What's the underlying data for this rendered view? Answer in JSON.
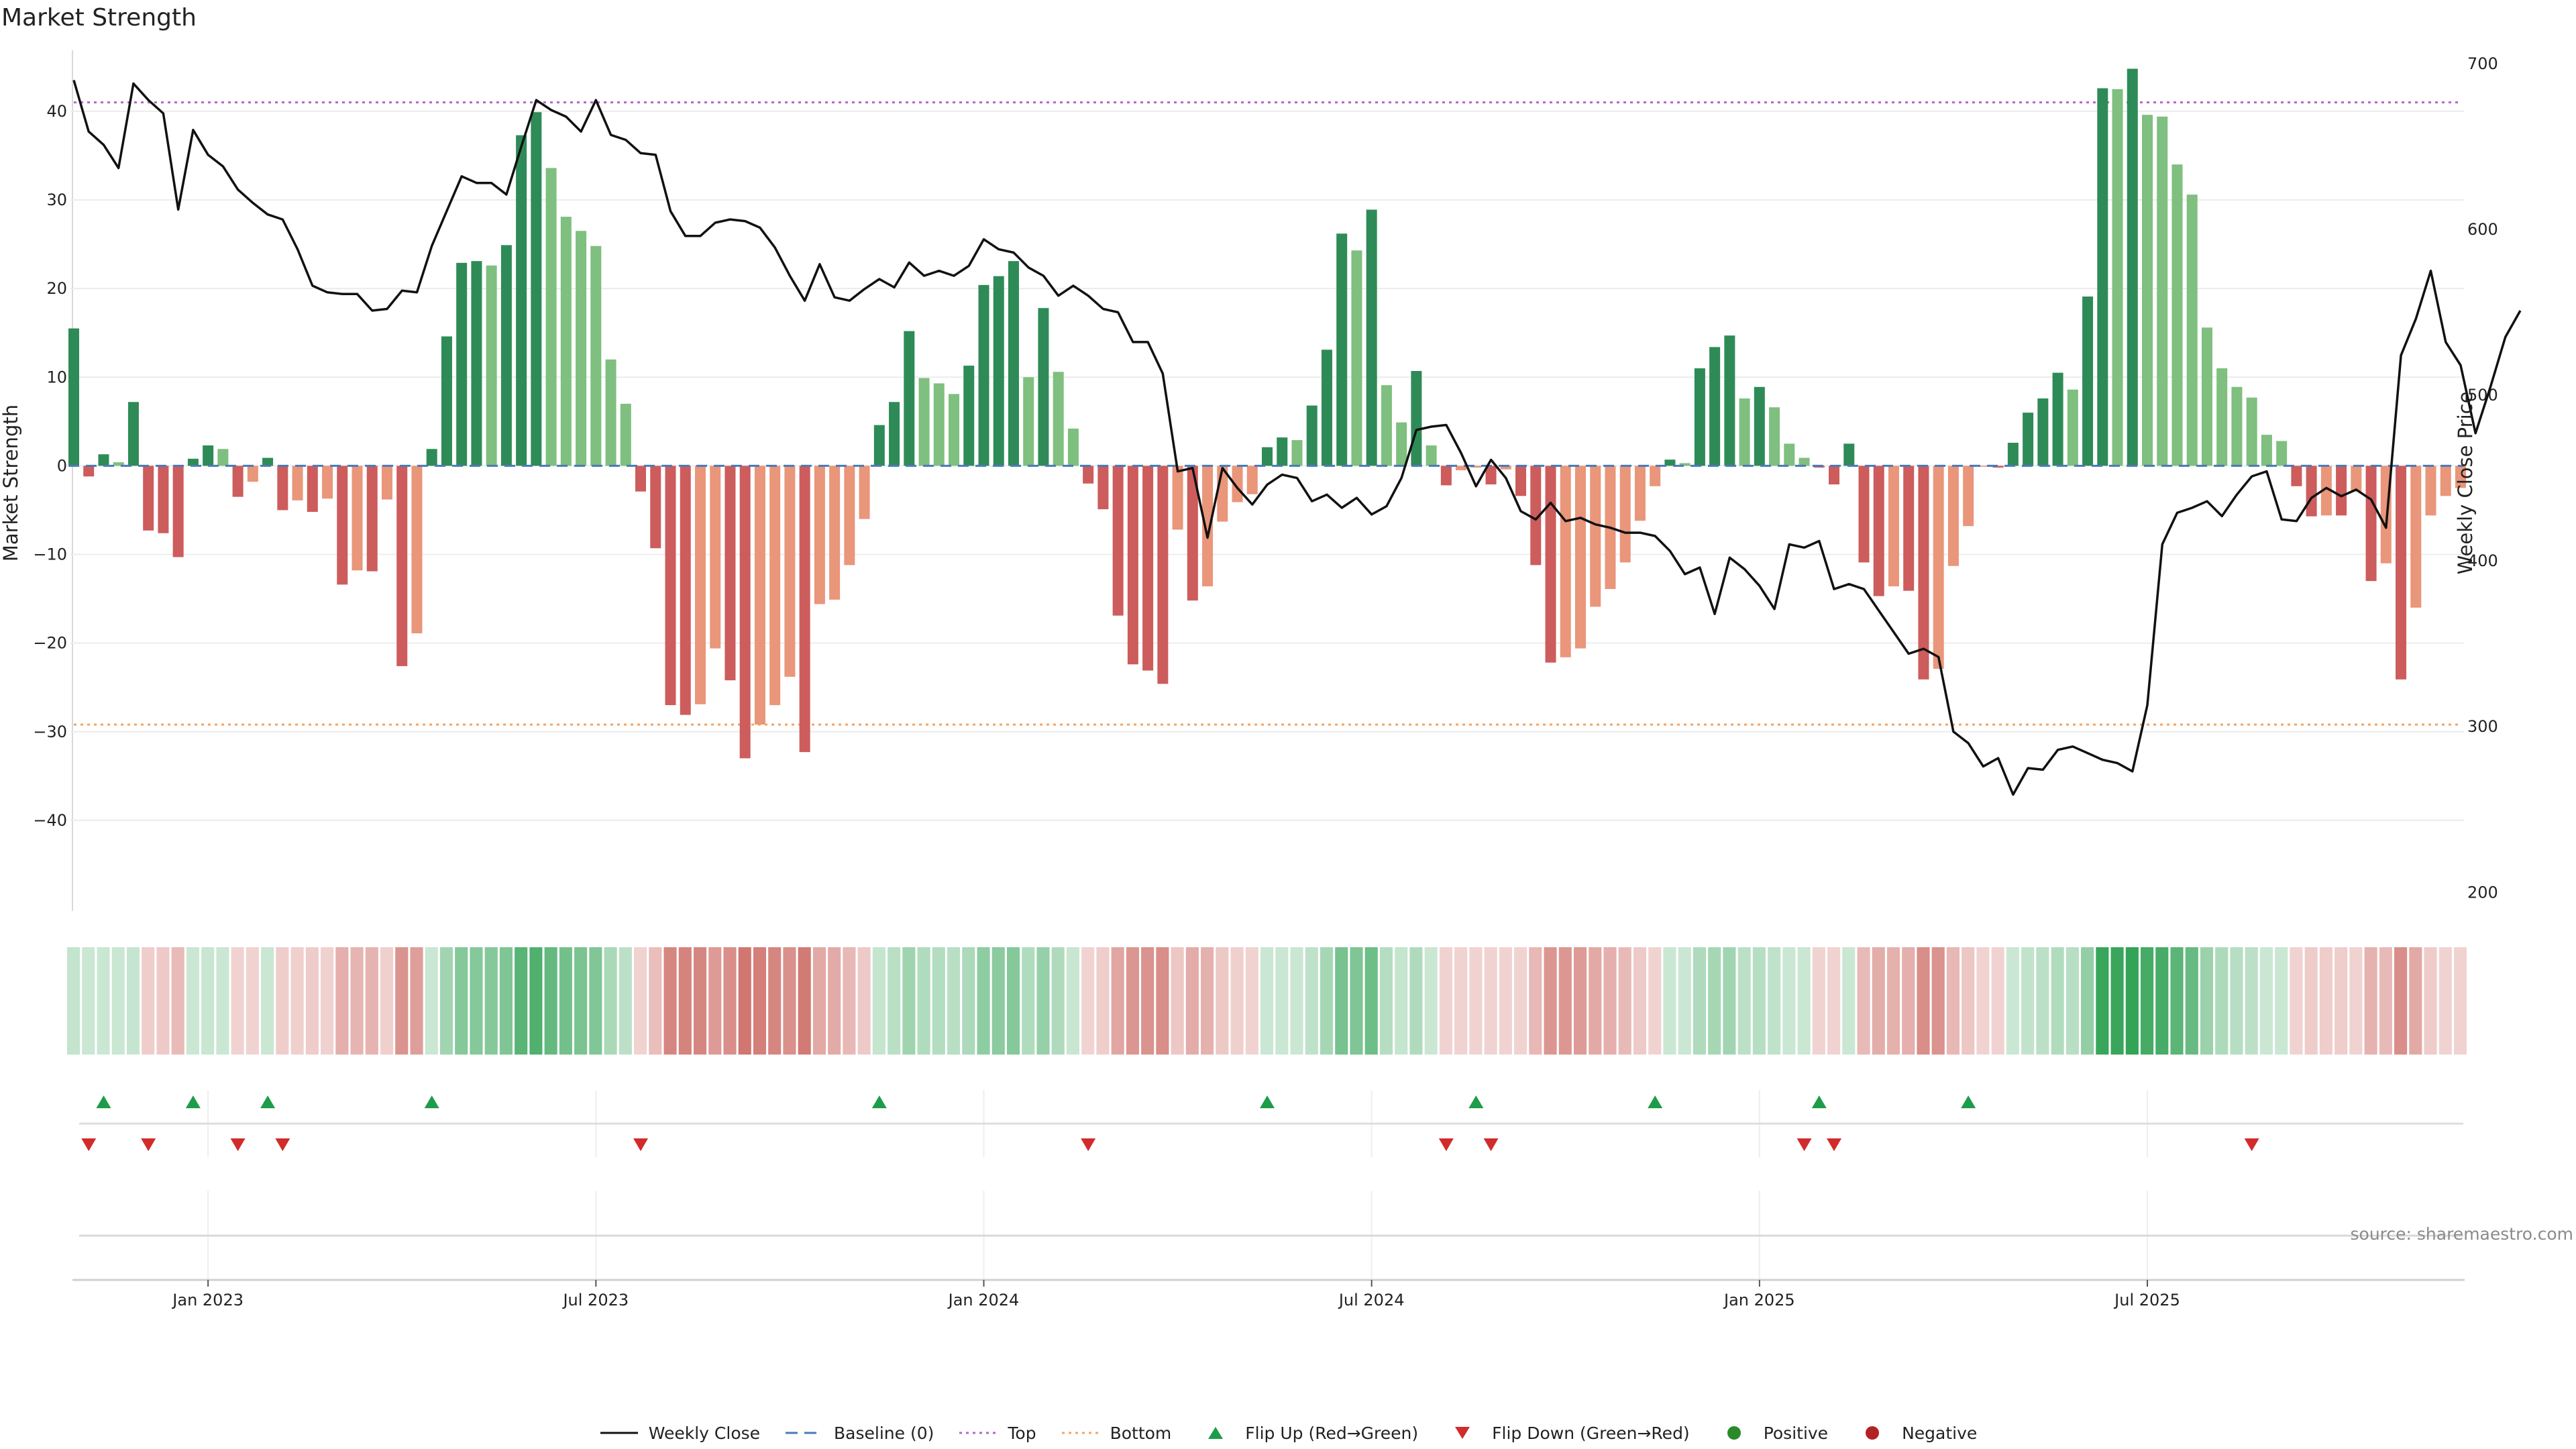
{
  "chart_data": {
    "type": "bar",
    "title": "Market Strength",
    "ylabel_left": "Market Strength",
    "ylabel_right": "Weekly Close Price",
    "source": "source: sharemaestro.com",
    "y_left_range": [
      -50,
      46.5
    ],
    "y_left_ticks": [
      40,
      30,
      20,
      10,
      0,
      -10,
      -20,
      -30,
      -40
    ],
    "y_left_tick_labels": [
      "40",
      "30",
      "20",
      "10",
      "0",
      "−10",
      "−20",
      "−30",
      "−40"
    ],
    "y_right_range": [
      190,
      706
    ],
    "y_right_ticks": [
      700,
      600,
      500,
      400,
      300,
      200
    ],
    "top_threshold": 41,
    "bottom_threshold": -29.2,
    "x_ticks": [
      {
        "label": "Jan 2023",
        "week": 9
      },
      {
        "label": "Jul 2023",
        "week": 35
      },
      {
        "label": "Jan 2024",
        "week": 61
      },
      {
        "label": "Jul 2024",
        "week": 87
      },
      {
        "label": "Jan 2025",
        "week": 113
      },
      {
        "label": "Jul 2025",
        "week": 139
      }
    ],
    "strength": [
      15.5,
      -1.2,
      1.3,
      0.4,
      7.2,
      -7.3,
      -7.6,
      -10.3,
      0.8,
      2.3,
      1.9,
      -3.5,
      -1.8,
      0.9,
      -5.0,
      -3.9,
      -5.2,
      -3.7,
      -13.4,
      -11.8,
      -11.9,
      -3.8,
      -22.6,
      -18.9,
      1.9,
      14.6,
      22.9,
      23.1,
      22.6,
      24.9,
      37.3,
      39.9,
      33.6,
      28.1,
      26.5,
      24.8,
      12.0,
      7.0,
      -2.9,
      -9.3,
      -27.0,
      -28.1,
      -26.9,
      -20.6,
      -24.2,
      -33.0,
      -29.2,
      -27.0,
      -23.8,
      -32.3,
      -15.6,
      -15.1,
      -11.2,
      -6.0,
      4.6,
      7.2,
      15.2,
      9.9,
      9.3,
      8.1,
      11.3,
      20.4,
      21.4,
      23.1,
      10.0,
      17.8,
      10.6,
      4.2,
      -2.0,
      -4.9,
      -16.9,
      -22.4,
      -23.1,
      -24.6,
      -7.2,
      -15.2,
      -13.6,
      -6.3,
      -4.1,
      -3.2,
      2.1,
      3.2,
      2.9,
      6.8,
      13.1,
      26.2,
      24.3,
      28.9,
      9.1,
      4.9,
      10.7,
      2.3,
      -2.2,
      -0.5,
      -0.2,
      -2.1,
      -0.4,
      -3.4,
      -11.2,
      -22.2,
      -21.6,
      -20.6,
      -15.9,
      -13.9,
      -10.9,
      -6.2,
      -2.3,
      0.7,
      0.3,
      11.0,
      13.4,
      14.7,
      7.6,
      8.9,
      6.6,
      2.5,
      0.9,
      -0.2,
      -2.1,
      2.5,
      -10.9,
      -14.7,
      -13.6,
      -14.1,
      -24.1,
      -22.9,
      -11.3,
      -6.8,
      -0.1,
      -0.2,
      2.6,
      6.0,
      7.6,
      10.5,
      8.6,
      19.1,
      42.6,
      42.5,
      44.8,
      39.6,
      39.4,
      34.0,
      30.6,
      15.6,
      11.0,
      8.9,
      7.7,
      3.5,
      2.8,
      -2.3,
      -5.7,
      -5.6,
      -5.6,
      -2.9,
      -13.0,
      -11.0,
      -24.1,
      -16.0,
      -5.6,
      -3.4,
      -2.5
    ],
    "weekly_close": [
      690,
      659,
      651,
      637,
      688,
      678,
      670,
      612,
      660,
      645,
      638,
      624,
      616,
      609,
      606,
      588,
      566,
      562,
      561,
      561,
      551,
      552,
      563,
      562,
      590,
      611,
      632,
      628,
      628,
      621,
      650,
      678,
      672,
      668,
      659,
      678,
      657,
      654,
      646,
      645,
      611,
      596,
      596,
      604,
      606,
      605,
      601,
      589,
      572,
      557,
      579,
      559,
      557,
      564,
      570,
      565,
      580,
      572,
      575,
      572,
      578,
      594,
      588,
      586,
      577,
      572,
      560,
      566,
      560,
      552,
      550,
      532,
      532,
      513,
      454,
      456,
      414,
      456,
      444,
      434,
      446,
      452,
      450,
      436,
      440,
      432,
      438,
      428,
      433,
      450,
      479,
      481,
      482,
      465,
      445,
      461,
      450,
      430,
      425,
      435,
      424,
      426,
      422,
      420,
      417,
      417,
      415,
      406,
      392,
      396,
      368,
      402,
      395,
      385,
      371,
      410,
      408,
      412,
      383,
      386,
      383,
      370,
      357,
      344,
      347,
      342,
      297,
      290,
      276,
      281,
      259,
      275,
      274,
      286,
      288,
      284,
      280,
      278,
      273,
      313,
      410,
      429,
      432,
      436,
      427,
      440,
      451,
      454,
      425,
      424,
      438,
      444,
      439,
      443,
      437,
      420,
      524,
      546,
      575,
      532,
      518,
      477,
      505,
      535,
      551
    ],
    "heat_values": [
      0.16,
      0.03,
      0.08,
      0.02,
      0.14,
      -0.16,
      -0.18,
      -0.28,
      0.06,
      0.13,
      0.11,
      -0.12,
      -0.08,
      0.06,
      -0.16,
      -0.14,
      -0.17,
      -0.13,
      -0.36,
      -0.32,
      -0.33,
      -0.14,
      -0.55,
      -0.48,
      0.11,
      0.35,
      0.5,
      0.5,
      0.5,
      0.54,
      0.75,
      0.8,
      0.69,
      0.6,
      0.56,
      0.53,
      0.3,
      0.2,
      -0.12,
      -0.26,
      -0.64,
      -0.66,
      -0.64,
      -0.5,
      -0.58,
      -0.74,
      -0.68,
      -0.64,
      -0.57,
      -0.72,
      -0.4,
      -0.39,
      -0.3,
      -0.18,
      0.15,
      0.21,
      0.36,
      0.26,
      0.25,
      0.22,
      0.29,
      0.45,
      0.47,
      0.5,
      0.26,
      0.41,
      0.27,
      0.13,
      -0.09,
      -0.16,
      -0.42,
      -0.53,
      -0.55,
      -0.58,
      -0.2,
      -0.38,
      -0.35,
      -0.19,
      -0.14,
      -0.12,
      0.09,
      0.12,
      0.11,
      0.19,
      0.32,
      0.58,
      0.54,
      0.63,
      0.24,
      0.15,
      0.27,
      0.09,
      -0.08,
      -0.05,
      -0.04,
      -0.08,
      -0.05,
      -0.12,
      -0.3,
      -0.53,
      -0.52,
      -0.5,
      -0.4,
      -0.36,
      -0.29,
      -0.18,
      -0.08,
      0.06,
      0.05,
      0.27,
      0.32,
      0.35,
      0.2,
      0.23,
      0.18,
      0.09,
      0.06,
      -0.04,
      -0.08,
      0.09,
      -0.29,
      -0.37,
      -0.35,
      -0.36,
      -0.58,
      -0.55,
      -0.3,
      -0.2,
      -0.03,
      -0.04,
      0.1,
      0.17,
      0.2,
      0.26,
      0.22,
      0.43,
      0.93,
      0.92,
      0.96,
      0.86,
      0.85,
      0.74,
      0.67,
      0.38,
      0.28,
      0.23,
      0.2,
      0.11,
      0.09,
      -0.08,
      -0.17,
      -0.16,
      -0.16,
      -0.1,
      -0.34,
      -0.29,
      -0.58,
      -0.4,
      -0.17,
      -0.11,
      -0.08
    ],
    "flip_up_weeks": [
      2,
      8,
      13,
      24,
      54,
      80,
      94,
      106,
      117,
      127
    ],
    "flip_down_weeks": [
      1,
      5,
      11,
      14,
      38,
      68,
      92,
      95,
      116,
      118,
      146
    ],
    "colors": {
      "strong_green": "#2e8b57",
      "light_green": "#7fbf7f",
      "strong_red": "#cd5c5c",
      "light_red": "#e9967a",
      "baseline": "#4a7ab5",
      "top": "#b267c9",
      "bottom": "#f4a460",
      "flip_up": "#1e9c4a",
      "flip_down": "#d22b2b",
      "positive": "#2a8a2a",
      "negative": "#b22222",
      "price_line": "#111111"
    },
    "legend": [
      {
        "label": "Weekly Close",
        "marker": "solid-line"
      },
      {
        "label": "Baseline (0)",
        "marker": "dashed-line"
      },
      {
        "label": "Top",
        "marker": "dotted-line"
      },
      {
        "label": "Bottom",
        "marker": "dotted-line"
      },
      {
        "label": "Flip Up (Red→Green)",
        "marker": "triangle-up"
      },
      {
        "label": "Flip Down (Green→Red)",
        "marker": "triangle-down"
      },
      {
        "label": "Positive",
        "marker": "circle"
      },
      {
        "label": "Negative",
        "marker": "circle"
      }
    ]
  }
}
